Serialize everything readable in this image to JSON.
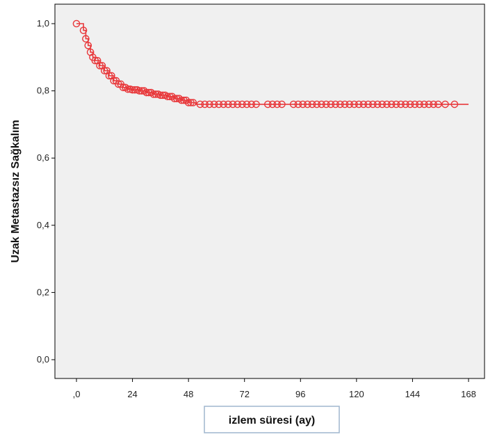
{
  "chart_data": {
    "type": "line",
    "subtype": "kaplan-meier survival curve with censor markers",
    "title": "",
    "xlabel": "izlem süresi (ay)",
    "ylabel": "Uzak Metastazsız Sağkalım",
    "xlim": [
      0,
      168
    ],
    "ylim": [
      0,
      1
    ],
    "x_ticks": [
      0,
      24,
      48,
      72,
      96,
      120,
      144,
      168
    ],
    "x_tick_labels": [
      ",0",
      "24",
      "48",
      "72",
      "96",
      "120",
      "144",
      "168"
    ],
    "y_ticks": [
      0,
      0.2,
      0.4,
      0.6,
      0.8,
      1.0
    ],
    "y_tick_labels": [
      "0,0",
      "0,2",
      "0,4",
      "0,6",
      "0,8",
      "1,0"
    ],
    "grid": false,
    "legend": "none",
    "colors": {
      "plot_background": "#f0f0f0",
      "series": "#e8383b"
    },
    "series": [
      {
        "x": [
          0,
          3,
          4,
          5,
          6,
          7,
          8,
          10,
          12,
          14,
          16,
          18,
          20,
          22,
          24,
          27,
          30,
          33,
          36,
          39,
          42,
          45,
          48,
          51,
          168
        ],
        "y": [
          1.0,
          0.98,
          0.955,
          0.935,
          0.915,
          0.9,
          0.89,
          0.875,
          0.86,
          0.845,
          0.83,
          0.82,
          0.81,
          0.805,
          0.803,
          0.8,
          0.795,
          0.79,
          0.787,
          0.783,
          0.777,
          0.772,
          0.765,
          0.76,
          0.76
        ],
        "censored_x": [
          0,
          3,
          4,
          5,
          6,
          7,
          8,
          9,
          10,
          11,
          12,
          13,
          14,
          15,
          16,
          17,
          18,
          19,
          20,
          21,
          22,
          23,
          24,
          25,
          26,
          27,
          28,
          29,
          30,
          31,
          32,
          33,
          34,
          35,
          36,
          37,
          38,
          39,
          40,
          41,
          42,
          43,
          44,
          45,
          46,
          47,
          48,
          49,
          50,
          53,
          55,
          57,
          59,
          61,
          63,
          65,
          67,
          69,
          71,
          73,
          75,
          77,
          82,
          84,
          86,
          88,
          93,
          95,
          97,
          99,
          101,
          103,
          105,
          107,
          109,
          111,
          113,
          115,
          117,
          119,
          121,
          123,
          125,
          127,
          129,
          131,
          133,
          135,
          137,
          139,
          141,
          143,
          145,
          147,
          149,
          151,
          153,
          155,
          158,
          162
        ]
      }
    ]
  }
}
